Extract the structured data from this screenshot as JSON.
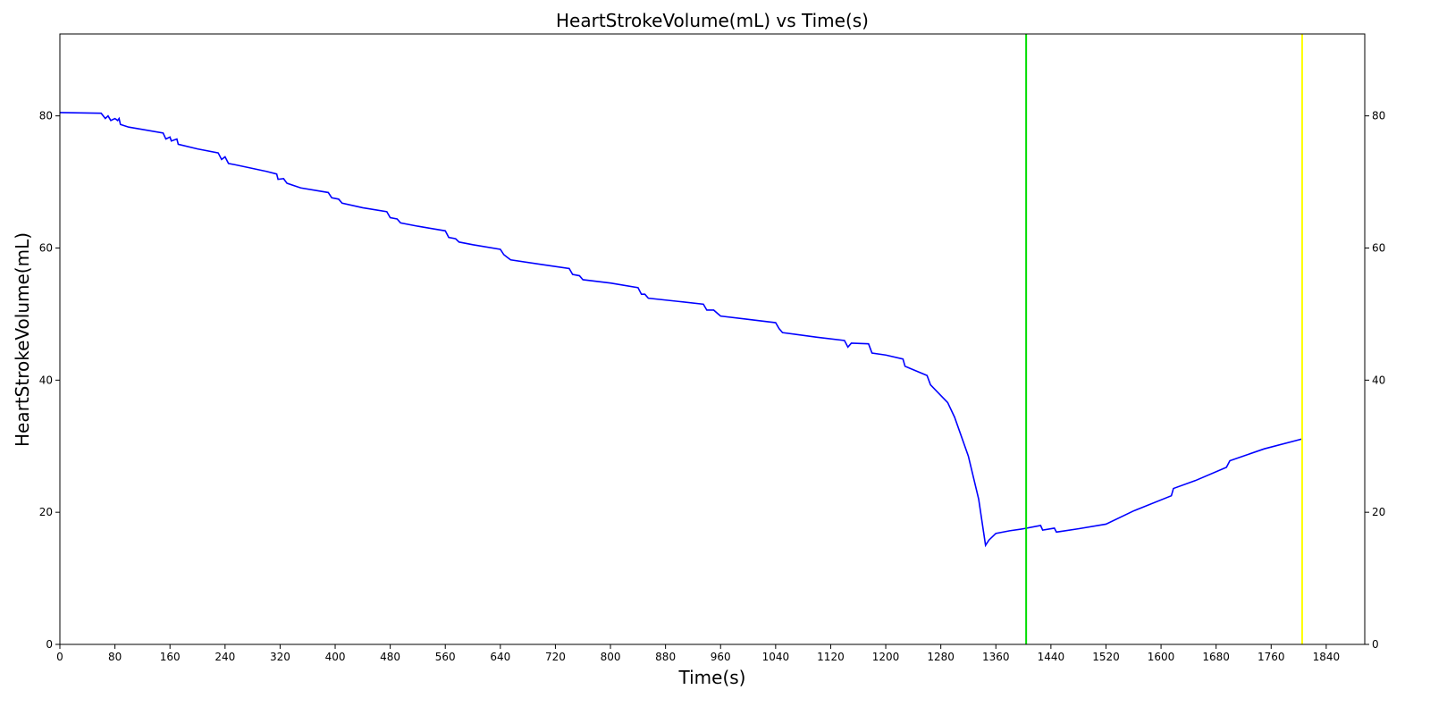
{
  "chart_data": {
    "type": "line",
    "title": "HeartStrokeVolume(mL) vs Time(s)",
    "xlabel": "Time(s)",
    "ylabel": "HeartStrokeVolume(mL)",
    "x": [
      0,
      60,
      66,
      70,
      74,
      80,
      84,
      86,
      88,
      100,
      150,
      154,
      160,
      162,
      170,
      172,
      200,
      230,
      235,
      240,
      245,
      255,
      300,
      315,
      317,
      325,
      330,
      350,
      390,
      395,
      405,
      410,
      440,
      475,
      480,
      490,
      495,
      520,
      560,
      565,
      575,
      580,
      600,
      640,
      645,
      650,
      655,
      700,
      740,
      745,
      755,
      760,
      800,
      840,
      845,
      850,
      855,
      900,
      935,
      940,
      950,
      960,
      1000,
      1040,
      1045,
      1050,
      1100,
      1140,
      1145,
      1150,
      1175,
      1180,
      1200,
      1225,
      1228,
      1260,
      1265,
      1290,
      1300,
      1320,
      1335,
      1345,
      1350,
      1360,
      1380,
      1400,
      1425,
      1428,
      1445,
      1448,
      1480,
      1520,
      1560,
      1615,
      1618,
      1650,
      1695,
      1700,
      1750,
      1805
    ],
    "series": [
      {
        "color": "#0000ff",
        "values": [
          80.5,
          80.4,
          79.6,
          80.0,
          79.3,
          79.6,
          79.3,
          79.6,
          78.7,
          78.3,
          77.4,
          76.5,
          76.8,
          76.2,
          76.5,
          75.7,
          75.0,
          74.4,
          73.4,
          73.8,
          72.8,
          72.6,
          71.6,
          71.2,
          70.4,
          70.5,
          69.8,
          69.1,
          68.4,
          67.6,
          67.4,
          66.8,
          66.1,
          65.5,
          64.6,
          64.4,
          63.8,
          63.3,
          62.6,
          61.6,
          61.4,
          60.9,
          60.5,
          59.8,
          59.0,
          58.6,
          58.2,
          57.5,
          56.9,
          56.0,
          55.8,
          55.2,
          54.7,
          54.0,
          53.0,
          53.0,
          52.4,
          51.9,
          51.5,
          50.6,
          50.6,
          49.7,
          49.2,
          48.7,
          47.8,
          47.2,
          46.5,
          46.0,
          45.0,
          45.6,
          45.5,
          44.1,
          43.8,
          43.2,
          42.1,
          40.7,
          39.3,
          36.6,
          34.4,
          28.5,
          22.0,
          15.0,
          15.8,
          16.8,
          17.2,
          17.5,
          18.0,
          17.3,
          17.6,
          17.0,
          17.5,
          18.2,
          20.2,
          22.5,
          23.6,
          24.8,
          26.8,
          27.8,
          29.6,
          31.1
        ]
      }
    ],
    "vlines": [
      {
        "x": 1404,
        "color": "#00dd00"
      },
      {
        "x": 1805,
        "color": "#ffff00"
      }
    ],
    "xlim": [
      0,
      1896
    ],
    "ylim": [
      0,
      92.4
    ],
    "xticks": [
      0,
      80,
      160,
      240,
      320,
      400,
      480,
      560,
      640,
      720,
      800,
      880,
      960,
      1040,
      1120,
      1200,
      1280,
      1360,
      1440,
      1520,
      1600,
      1680,
      1760,
      1840
    ],
    "yticks": [
      0,
      20,
      40,
      60,
      80
    ]
  }
}
